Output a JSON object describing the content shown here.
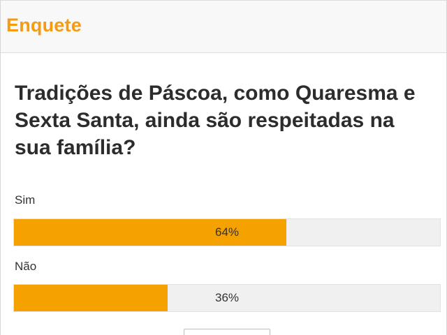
{
  "poll": {
    "header_title": "Enquete",
    "question": "Tradições de Páscoa, como Quaresma e Sexta Santa, ainda são respeitadas na sua família?",
    "accent_color": "#f39c12",
    "bar_color": "#f5a200",
    "options": [
      {
        "label": "Sim",
        "percent_text": "64%",
        "fraction": 0.64
      },
      {
        "label": "Não",
        "percent_text": "36%",
        "fraction": 0.36
      }
    ]
  }
}
